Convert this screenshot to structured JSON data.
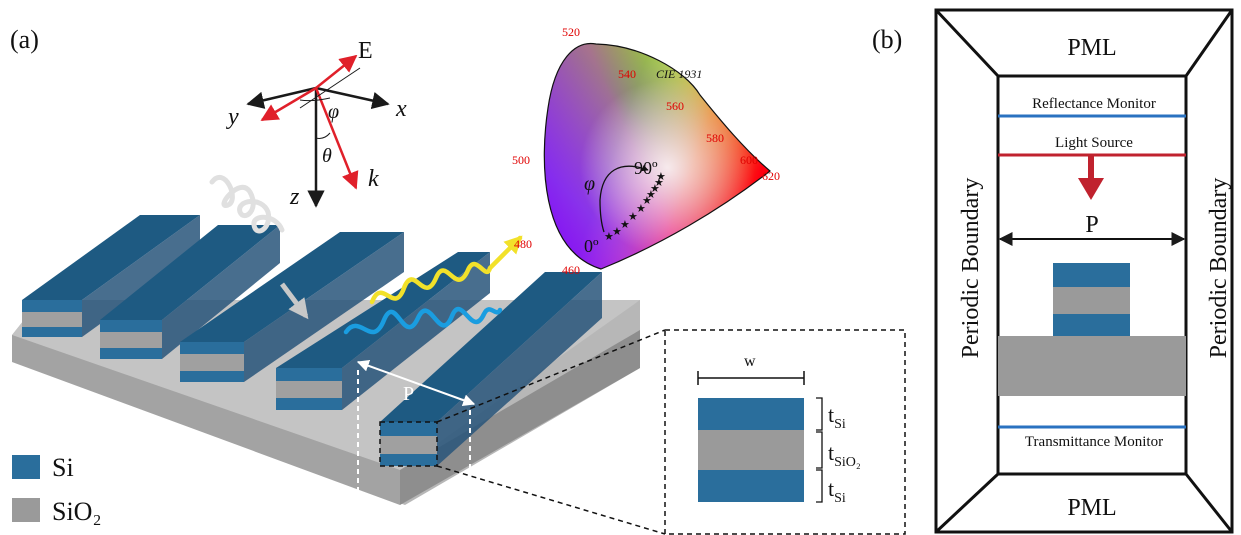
{
  "panel_a": {
    "label": "(a)",
    "axes": {
      "E": "E",
      "x": "x",
      "y": "y",
      "z": "z",
      "k": "k",
      "phi": "φ",
      "theta": "θ"
    },
    "period": "P",
    "legend": [
      {
        "name": "Si",
        "color": "#2a6e9c"
      },
      {
        "name": "SiO₂",
        "color": "#9a9a9a"
      }
    ],
    "inset": {
      "width_label": "w",
      "t": "t",
      "sub_si": "Si",
      "sub_sio2": "SiO₂"
    },
    "cie": {
      "title": "CIE 1931",
      "ticks": [
        "520",
        "540",
        "560",
        "580",
        "600",
        "620",
        "500",
        "480",
        "460"
      ],
      "angle_symbol": "φ",
      "label_90": "90º",
      "label_0": "0º"
    }
  },
  "panel_b": {
    "label": "(b)",
    "pml_top": "PML",
    "pml_bottom": "PML",
    "reflectance": "Reflectance Monitor",
    "source": "Light Source",
    "period": "P",
    "transmittance": "Transmittance Monitor",
    "boundary_left": "Periodic Boundary",
    "boundary_right": "Periodic Boundary"
  },
  "colors": {
    "si": "#2a6e9c",
    "sio2": "#9a9a9a",
    "substrate": "#a9a9a9",
    "arrow_red": "#e0202a",
    "source_red": "#c0222e",
    "monitor_blue": "#2a72c0",
    "wave_yellow": "#f2e12a",
    "wave_blue": "#1a9de0",
    "tick_red": "#e00000"
  }
}
